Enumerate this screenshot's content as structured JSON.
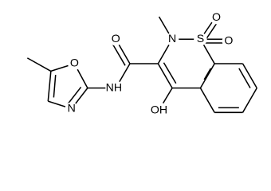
{
  "atoms": {
    "carbonyl_o": "O",
    "ring_n": "N",
    "sulfur": "S",
    "sulfonyl_o1": "O",
    "sulfonyl_o2": "O",
    "amide_nh": "NH",
    "oxazole_o": "O",
    "oxazole_n": "N",
    "hydroxy": "OH"
  }
}
